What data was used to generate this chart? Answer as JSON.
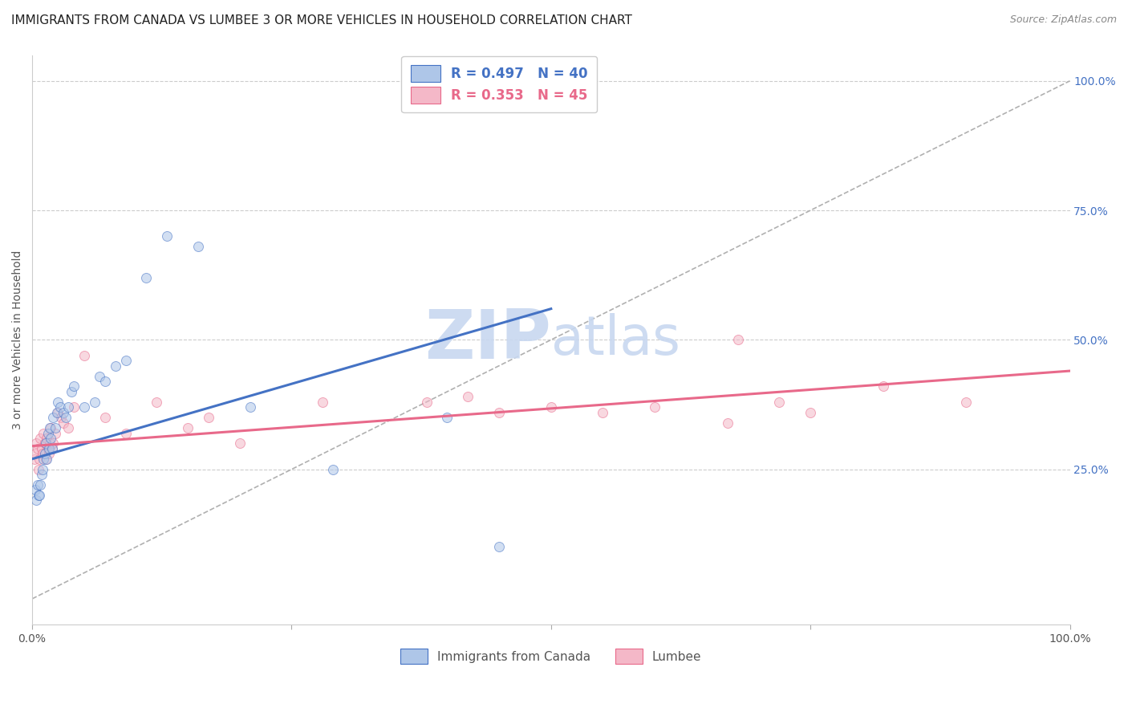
{
  "title": "IMMIGRANTS FROM CANADA VS LUMBEE 3 OR MORE VEHICLES IN HOUSEHOLD CORRELATION CHART",
  "source": "Source: ZipAtlas.com",
  "ylabel": "3 or more Vehicles in Household",
  "xlim": [
    0,
    1.0
  ],
  "ylim": [
    -0.05,
    1.05
  ],
  "legend_items": [
    {
      "label": "R = 0.497   N = 40",
      "color": "#aec6e8",
      "line_color": "#4472c4"
    },
    {
      "label": "R = 0.353   N = 45",
      "color": "#f4b8c8",
      "line_color": "#e8698a"
    }
  ],
  "legend_bottom": [
    {
      "label": "Immigrants from Canada",
      "color": "#aec6e8"
    },
    {
      "label": "Lumbee",
      "color": "#f4b8c8"
    }
  ],
  "blue_scatter_x": [
    0.003,
    0.004,
    0.005,
    0.006,
    0.007,
    0.008,
    0.009,
    0.01,
    0.011,
    0.012,
    0.013,
    0.014,
    0.015,
    0.016,
    0.017,
    0.018,
    0.019,
    0.02,
    0.022,
    0.024,
    0.025,
    0.027,
    0.03,
    0.032,
    0.035,
    0.038,
    0.04,
    0.05,
    0.06,
    0.065,
    0.07,
    0.08,
    0.09,
    0.11,
    0.13,
    0.16,
    0.21,
    0.29,
    0.4,
    0.45
  ],
  "blue_scatter_y": [
    0.21,
    0.19,
    0.22,
    0.2,
    0.2,
    0.22,
    0.24,
    0.25,
    0.27,
    0.28,
    0.3,
    0.27,
    0.32,
    0.29,
    0.33,
    0.31,
    0.29,
    0.35,
    0.33,
    0.36,
    0.38,
    0.37,
    0.36,
    0.35,
    0.37,
    0.4,
    0.41,
    0.37,
    0.38,
    0.43,
    0.42,
    0.45,
    0.46,
    0.62,
    0.7,
    0.68,
    0.37,
    0.25,
    0.35,
    0.1
  ],
  "pink_scatter_x": [
    0.002,
    0.003,
    0.004,
    0.005,
    0.006,
    0.007,
    0.008,
    0.009,
    0.01,
    0.011,
    0.012,
    0.013,
    0.014,
    0.015,
    0.016,
    0.017,
    0.018,
    0.019,
    0.02,
    0.022,
    0.025,
    0.028,
    0.03,
    0.035,
    0.04,
    0.05,
    0.07,
    0.09,
    0.12,
    0.15,
    0.17,
    0.2,
    0.28,
    0.38,
    0.42,
    0.45,
    0.5,
    0.55,
    0.6,
    0.67,
    0.68,
    0.72,
    0.75,
    0.82,
    0.9
  ],
  "pink_scatter_y": [
    0.27,
    0.28,
    0.3,
    0.29,
    0.25,
    0.27,
    0.31,
    0.29,
    0.28,
    0.32,
    0.3,
    0.27,
    0.31,
    0.29,
    0.28,
    0.3,
    0.33,
    0.29,
    0.3,
    0.32,
    0.36,
    0.35,
    0.34,
    0.33,
    0.37,
    0.47,
    0.35,
    0.32,
    0.38,
    0.33,
    0.35,
    0.3,
    0.38,
    0.38,
    0.39,
    0.36,
    0.37,
    0.36,
    0.37,
    0.34,
    0.5,
    0.38,
    0.36,
    0.41,
    0.38
  ],
  "blue_line_x": [
    0.0,
    0.5
  ],
  "blue_line_y": [
    0.27,
    0.56
  ],
  "pink_line_x": [
    0.0,
    1.0
  ],
  "pink_line_y": [
    0.295,
    0.44
  ],
  "diagonal_line_x": [
    0.0,
    1.0
  ],
  "diagonal_line_y": [
    0.0,
    1.0
  ],
  "title_fontsize": 11,
  "axis_label_fontsize": 10,
  "tick_fontsize": 10,
  "scatter_size": 75,
  "scatter_alpha": 0.55,
  "blue_color": "#aec6e8",
  "blue_line_color": "#4472c4",
  "pink_color": "#f4b8c8",
  "pink_line_color": "#e8698a",
  "diagonal_color": "#b0b0b0",
  "grid_color": "#cccccc",
  "bg_color": "#ffffff",
  "watermark_zip": "ZIP",
  "watermark_atlas": "atlas",
  "watermark_color": "#c8d8f0"
}
